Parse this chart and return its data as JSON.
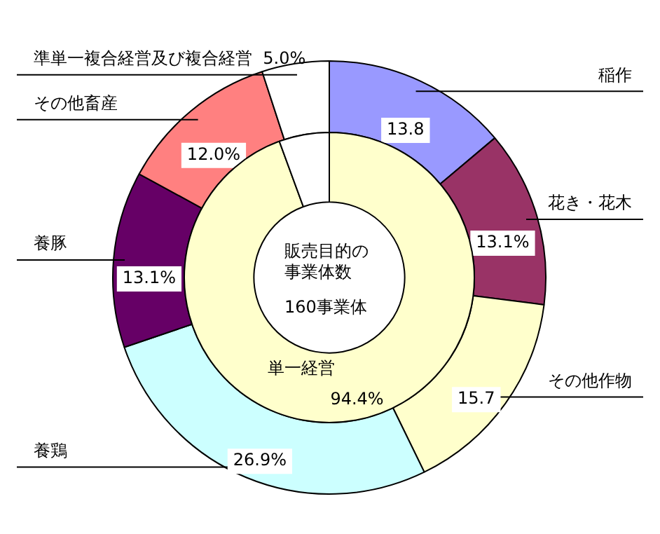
{
  "chart_data": [
    {
      "type": "donut",
      "legend": false,
      "categories": [
        "稲作",
        "花き・花木",
        "その他作物",
        "養鶏",
        "養豚",
        "その他畜産",
        "準単一複合経営及び複合経営"
      ],
      "values": [
        13.8,
        13.1,
        15.7,
        26.9,
        13.1,
        12.0,
        5.0
      ],
      "colors": [
        "#9999ff",
        "#993366",
        "#ffffcc",
        "#ccffff",
        "#660066",
        "#ff8080",
        "#ffffff"
      ],
      "value_labels": [
        "13.8",
        "13.1%",
        "15.7",
        "26.9%",
        "13.1%",
        "12.0%",
        "5.0%"
      ]
    },
    {
      "type": "donut",
      "legend": false,
      "title": "販売目的の事業体数",
      "subtitle": "160事業体",
      "categories": [
        "単一経営",
        null
      ],
      "values": [
        94.4,
        5.6
      ],
      "colors": [
        "#ffffcc",
        "#ffffff"
      ],
      "value_labels": [
        "94.4%",
        null
      ]
    }
  ]
}
